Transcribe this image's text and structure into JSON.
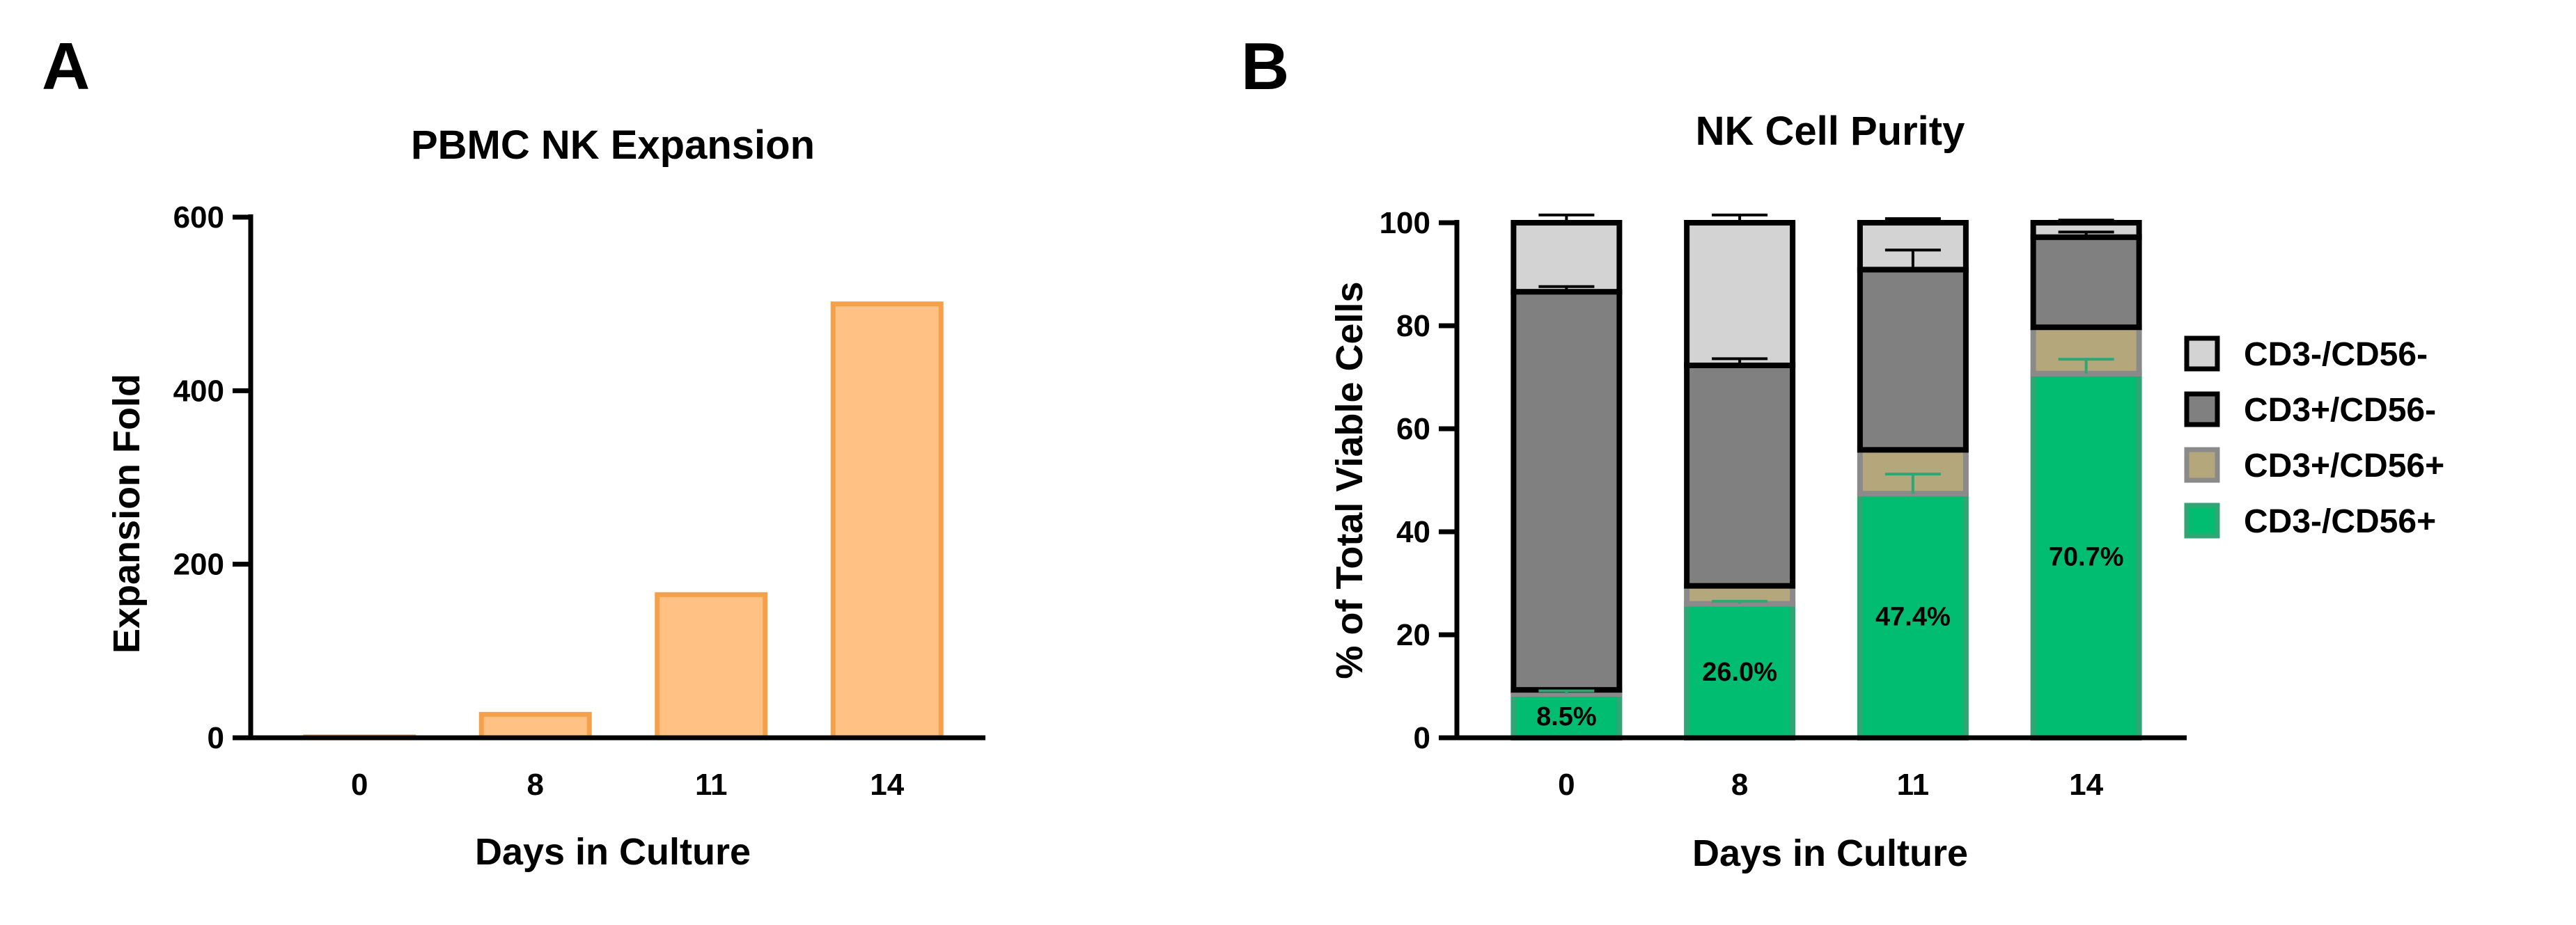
{
  "panel_a": {
    "letter": "A",
    "chart_data": {
      "type": "bar",
      "title": "PBMC NK Expansion",
      "xlabel": "Days in Culture",
      "ylabel": "Expansion Fold",
      "categories": [
        "0",
        "8",
        "11",
        "14"
      ],
      "values": [
        1,
        27,
        165,
        500
      ],
      "ylim": [
        0,
        600
      ],
      "yticks": [
        "0",
        "200",
        "400",
        "600"
      ],
      "bar_fill": "#ffc184",
      "bar_stroke": "#f5a04a"
    }
  },
  "panel_b": {
    "letter": "B",
    "chart_data": {
      "type": "bar",
      "stacked": true,
      "title": "NK Cell Purity",
      "xlabel": "Days in Culture",
      "ylabel": "% of Total Viable Cells",
      "categories": [
        "0",
        "8",
        "11",
        "14"
      ],
      "ylim": [
        0,
        100
      ],
      "yticks": [
        "0",
        "20",
        "40",
        "60",
        "80",
        "100"
      ],
      "series": [
        {
          "name": "CD3-/CD56+",
          "values": [
            8.5,
            26.0,
            47.4,
            70.7
          ],
          "color": "#00bd72",
          "stroke": "#2fa673",
          "errors": [
            0.6,
            0.5,
            3.8,
            2.8
          ]
        },
        {
          "name": "CD3+/CD56+",
          "values": [
            0.8,
            3.5,
            8.5,
            9.0
          ],
          "color": "#b4a77c",
          "stroke": "#8a8a8a",
          "errors": [
            0,
            0,
            0,
            0
          ]
        },
        {
          "name": "CD3+/CD56-",
          "values": [
            77.3,
            42.8,
            35.0,
            17.5
          ],
          "color": "#808080",
          "stroke": "#000000",
          "errors": [
            1.0,
            1.3,
            3.8,
            1.0
          ]
        },
        {
          "name": "CD3-/CD56-",
          "values": [
            13.4,
            27.7,
            9.1,
            2.8
          ],
          "color": "#d3d3d3",
          "stroke": "#000000",
          "errors": [
            1.5,
            1.5,
            0.8,
            0.5
          ]
        }
      ],
      "data_labels": [
        "8.5%",
        "26.0%",
        "47.4%",
        "70.7%"
      ],
      "legend": {
        "placement": "right",
        "entries": [
          "CD3-/CD56-",
          "CD3+/CD56-",
          "CD3+/CD56+",
          "CD3-/CD56+"
        ]
      }
    }
  }
}
